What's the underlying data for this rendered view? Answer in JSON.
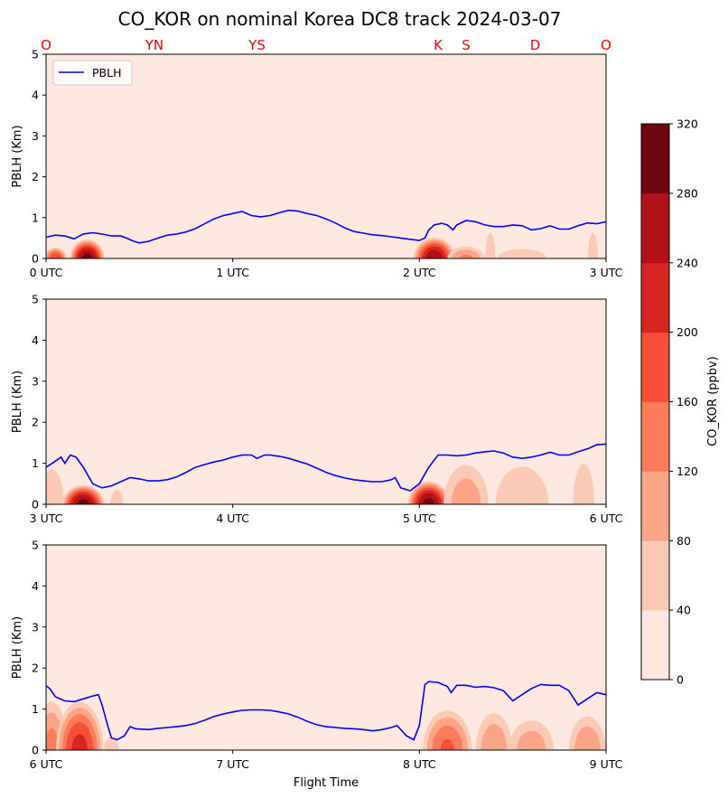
{
  "chart_data": {
    "type": "area",
    "title": "CO_KOR on nominal Korea DC8 track 2024-03-07",
    "xlabel": "Flight Time",
    "ylabel": "PBLH (Km)",
    "ylim": [
      0,
      5
    ],
    "y_ticks": [
      "0",
      "1",
      "2",
      "3",
      "4",
      "5"
    ],
    "legend": {
      "label": "PBLH",
      "placement": "top-left",
      "color": "#0000ff"
    },
    "station_color": "#ff0000",
    "stations": [
      {
        "label": "O",
        "t": 0.0
      },
      {
        "label": "YN",
        "t": 0.58
      },
      {
        "label": "YS",
        "t": 1.13
      },
      {
        "label": "K",
        "t": 2.1
      },
      {
        "label": "S",
        "t": 2.25
      },
      {
        "label": "D",
        "t": 2.62
      },
      {
        "label": "O",
        "t": 3.0
      }
    ],
    "colorbar": {
      "label": "CO_KOR (ppbv)",
      "levels": [
        0,
        40,
        80,
        120,
        160,
        200,
        240,
        280,
        320
      ],
      "tick_labels": [
        "0",
        "40",
        "80",
        "120",
        "160",
        "200",
        "240",
        "280",
        "320"
      ],
      "colors": [
        "#fee8df",
        "#fcc9b4",
        "#fca487",
        "#fb7b5b",
        "#f44f39",
        "#d92522",
        "#b01217",
        "#6f0511"
      ]
    },
    "panels": [
      {
        "x_ticks": [
          "0 UTC",
          "1 UTC",
          "2 UTC",
          "3 UTC"
        ],
        "pblh": [
          [
            0,
            0.52
          ],
          [
            0.05,
            0.57
          ],
          [
            0.1,
            0.55
          ],
          [
            0.15,
            0.48
          ],
          [
            0.2,
            0.6
          ],
          [
            0.25,
            0.63
          ],
          [
            0.3,
            0.6
          ],
          [
            0.35,
            0.55
          ],
          [
            0.4,
            0.55
          ],
          [
            0.43,
            0.5
          ],
          [
            0.47,
            0.42
          ],
          [
            0.5,
            0.38
          ],
          [
            0.55,
            0.42
          ],
          [
            0.6,
            0.5
          ],
          [
            0.65,
            0.57
          ],
          [
            0.7,
            0.6
          ],
          [
            0.75,
            0.65
          ],
          [
            0.8,
            0.73
          ],
          [
            0.85,
            0.85
          ],
          [
            0.9,
            0.97
          ],
          [
            0.95,
            1.05
          ],
          [
            1.0,
            1.1
          ],
          [
            1.05,
            1.15
          ],
          [
            1.1,
            1.05
          ],
          [
            1.15,
            1.02
          ],
          [
            1.2,
            1.05
          ],
          [
            1.25,
            1.12
          ],
          [
            1.3,
            1.18
          ],
          [
            1.35,
            1.16
          ],
          [
            1.4,
            1.1
          ],
          [
            1.45,
            1.05
          ],
          [
            1.5,
            0.97
          ],
          [
            1.55,
            0.87
          ],
          [
            1.6,
            0.75
          ],
          [
            1.65,
            0.66
          ],
          [
            1.7,
            0.62
          ],
          [
            1.75,
            0.58
          ],
          [
            1.8,
            0.56
          ],
          [
            1.85,
            0.53
          ],
          [
            1.9,
            0.5
          ],
          [
            1.95,
            0.47
          ],
          [
            2.0,
            0.44
          ],
          [
            2.03,
            0.5
          ],
          [
            2.05,
            0.7
          ],
          [
            2.08,
            0.82
          ],
          [
            2.12,
            0.86
          ],
          [
            2.15,
            0.82
          ],
          [
            2.18,
            0.7
          ],
          [
            2.2,
            0.82
          ],
          [
            2.25,
            0.93
          ],
          [
            2.3,
            0.9
          ],
          [
            2.35,
            0.82
          ],
          [
            2.4,
            0.78
          ],
          [
            2.45,
            0.78
          ],
          [
            2.5,
            0.82
          ],
          [
            2.55,
            0.8
          ],
          [
            2.6,
            0.7
          ],
          [
            2.65,
            0.73
          ],
          [
            2.7,
            0.8
          ],
          [
            2.75,
            0.72
          ],
          [
            2.8,
            0.72
          ],
          [
            2.85,
            0.8
          ],
          [
            2.9,
            0.87
          ],
          [
            2.95,
            0.85
          ],
          [
            3.0,
            0.9
          ]
        ],
        "co": [
          {
            "t": 0.05,
            "w": 0.07,
            "h": 0.3,
            "peak": 200
          },
          {
            "t": 0.22,
            "w": 0.1,
            "h": 0.5,
            "peak": 300
          },
          {
            "t": 2.08,
            "w": 0.12,
            "h": 0.55,
            "peak": 280
          },
          {
            "t": 2.25,
            "w": 0.12,
            "h": 0.35,
            "peak": 130
          },
          {
            "t": 2.38,
            "w": 0.06,
            "h": 1.4,
            "peak": 50
          },
          {
            "t": 2.55,
            "w": 0.2,
            "h": 0.35,
            "peak": 70
          },
          {
            "t": 2.93,
            "w": 0.06,
            "h": 1.4,
            "peak": 50
          }
        ]
      },
      {
        "x_ticks": [
          "3 UTC",
          "4 UTC",
          "5 UTC",
          "6 UTC"
        ],
        "pblh": [
          [
            3.0,
            0.9
          ],
          [
            3.05,
            1.05
          ],
          [
            3.08,
            1.15
          ],
          [
            3.1,
            1.0
          ],
          [
            3.13,
            1.2
          ],
          [
            3.16,
            1.15
          ],
          [
            3.2,
            0.9
          ],
          [
            3.25,
            0.5
          ],
          [
            3.3,
            0.4
          ],
          [
            3.35,
            0.45
          ],
          [
            3.4,
            0.55
          ],
          [
            3.45,
            0.65
          ],
          [
            3.5,
            0.62
          ],
          [
            3.55,
            0.57
          ],
          [
            3.6,
            0.57
          ],
          [
            3.65,
            0.6
          ],
          [
            3.7,
            0.67
          ],
          [
            3.75,
            0.78
          ],
          [
            3.8,
            0.9
          ],
          [
            3.85,
            0.97
          ],
          [
            3.9,
            1.03
          ],
          [
            3.95,
            1.08
          ],
          [
            4.0,
            1.15
          ],
          [
            4.05,
            1.2
          ],
          [
            4.1,
            1.2
          ],
          [
            4.13,
            1.12
          ],
          [
            4.17,
            1.2
          ],
          [
            4.2,
            1.2
          ],
          [
            4.25,
            1.17
          ],
          [
            4.3,
            1.12
          ],
          [
            4.35,
            1.05
          ],
          [
            4.4,
            0.98
          ],
          [
            4.45,
            0.88
          ],
          [
            4.5,
            0.78
          ],
          [
            4.55,
            0.7
          ],
          [
            4.6,
            0.64
          ],
          [
            4.65,
            0.6
          ],
          [
            4.7,
            0.57
          ],
          [
            4.75,
            0.55
          ],
          [
            4.8,
            0.55
          ],
          [
            4.85,
            0.6
          ],
          [
            4.87,
            0.65
          ],
          [
            4.9,
            0.4
          ],
          [
            4.95,
            0.33
          ],
          [
            5.0,
            0.5
          ],
          [
            5.05,
            0.9
          ],
          [
            5.1,
            1.2
          ],
          [
            5.15,
            1.2
          ],
          [
            5.2,
            1.18
          ],
          [
            5.25,
            1.2
          ],
          [
            5.3,
            1.25
          ],
          [
            5.35,
            1.28
          ],
          [
            5.4,
            1.3
          ],
          [
            5.45,
            1.25
          ],
          [
            5.5,
            1.15
          ],
          [
            5.55,
            1.12
          ],
          [
            5.6,
            1.15
          ],
          [
            5.65,
            1.2
          ],
          [
            5.7,
            1.27
          ],
          [
            5.75,
            1.2
          ],
          [
            5.8,
            1.2
          ],
          [
            5.85,
            1.28
          ],
          [
            5.9,
            1.35
          ],
          [
            5.95,
            1.45
          ],
          [
            6.0,
            1.47
          ]
        ],
        "co": [
          {
            "t": 3.03,
            "w": 0.1,
            "h": 1.3,
            "peak": 70
          },
          {
            "t": 3.2,
            "w": 0.12,
            "h": 0.5,
            "peak": 300
          },
          {
            "t": 3.38,
            "w": 0.06,
            "h": 0.6,
            "peak": 60
          },
          {
            "t": 5.05,
            "w": 0.12,
            "h": 0.6,
            "peak": 300
          },
          {
            "t": 5.25,
            "w": 0.15,
            "h": 1.2,
            "peak": 110
          },
          {
            "t": 5.55,
            "w": 0.2,
            "h": 1.3,
            "peak": 80
          },
          {
            "t": 5.88,
            "w": 0.1,
            "h": 1.7,
            "peak": 60
          }
        ]
      },
      {
        "x_ticks": [
          "6 UTC",
          "7 UTC",
          "8 UTC",
          "9 UTC"
        ],
        "pblh": [
          [
            6.0,
            1.57
          ],
          [
            6.02,
            1.5
          ],
          [
            6.05,
            1.3
          ],
          [
            6.1,
            1.2
          ],
          [
            6.15,
            1.18
          ],
          [
            6.2,
            1.25
          ],
          [
            6.25,
            1.32
          ],
          [
            6.28,
            1.35
          ],
          [
            6.3,
            1.1
          ],
          [
            6.33,
            0.6
          ],
          [
            6.35,
            0.3
          ],
          [
            6.38,
            0.25
          ],
          [
            6.4,
            0.3
          ],
          [
            6.42,
            0.35
          ],
          [
            6.45,
            0.57
          ],
          [
            6.48,
            0.52
          ],
          [
            6.55,
            0.5
          ],
          [
            6.6,
            0.53
          ],
          [
            6.65,
            0.55
          ],
          [
            6.7,
            0.57
          ],
          [
            6.75,
            0.6
          ],
          [
            6.8,
            0.65
          ],
          [
            6.85,
            0.73
          ],
          [
            6.9,
            0.82
          ],
          [
            6.95,
            0.88
          ],
          [
            7.0,
            0.93
          ],
          [
            7.05,
            0.97
          ],
          [
            7.1,
            0.98
          ],
          [
            7.15,
            0.98
          ],
          [
            7.2,
            0.97
          ],
          [
            7.25,
            0.93
          ],
          [
            7.3,
            0.88
          ],
          [
            7.35,
            0.8
          ],
          [
            7.4,
            0.7
          ],
          [
            7.45,
            0.62
          ],
          [
            7.5,
            0.57
          ],
          [
            7.55,
            0.55
          ],
          [
            7.6,
            0.53
          ],
          [
            7.65,
            0.52
          ],
          [
            7.7,
            0.5
          ],
          [
            7.75,
            0.47
          ],
          [
            7.8,
            0.5
          ],
          [
            7.85,
            0.55
          ],
          [
            7.88,
            0.6
          ],
          [
            7.9,
            0.5
          ],
          [
            7.93,
            0.35
          ],
          [
            7.97,
            0.25
          ],
          [
            8.0,
            0.6
          ],
          [
            8.03,
            1.6
          ],
          [
            8.05,
            1.67
          ],
          [
            8.1,
            1.65
          ],
          [
            8.15,
            1.55
          ],
          [
            8.17,
            1.4
          ],
          [
            8.2,
            1.58
          ],
          [
            8.25,
            1.58
          ],
          [
            8.3,
            1.53
          ],
          [
            8.35,
            1.55
          ],
          [
            8.4,
            1.52
          ],
          [
            8.45,
            1.45
          ],
          [
            8.5,
            1.2
          ],
          [
            8.55,
            1.35
          ],
          [
            8.6,
            1.5
          ],
          [
            8.65,
            1.6
          ],
          [
            8.7,
            1.58
          ],
          [
            8.75,
            1.58
          ],
          [
            8.8,
            1.45
          ],
          [
            8.85,
            1.1
          ],
          [
            8.9,
            1.25
          ],
          [
            8.95,
            1.4
          ],
          [
            9.0,
            1.35
          ]
        ],
        "co": [
          {
            "t": 6.03,
            "w": 0.1,
            "h": 1.4,
            "peak": 140
          },
          {
            "t": 6.18,
            "w": 0.14,
            "h": 1.3,
            "peak": 220
          },
          {
            "t": 6.35,
            "w": 0.06,
            "h": 0.5,
            "peak": 70
          },
          {
            "t": 8.15,
            "w": 0.15,
            "h": 1.1,
            "peak": 170
          },
          {
            "t": 8.4,
            "w": 0.12,
            "h": 1.1,
            "peak": 120
          },
          {
            "t": 8.6,
            "w": 0.15,
            "h": 0.9,
            "peak": 110
          },
          {
            "t": 8.9,
            "w": 0.12,
            "h": 1.0,
            "peak": 120
          }
        ]
      }
    ]
  }
}
